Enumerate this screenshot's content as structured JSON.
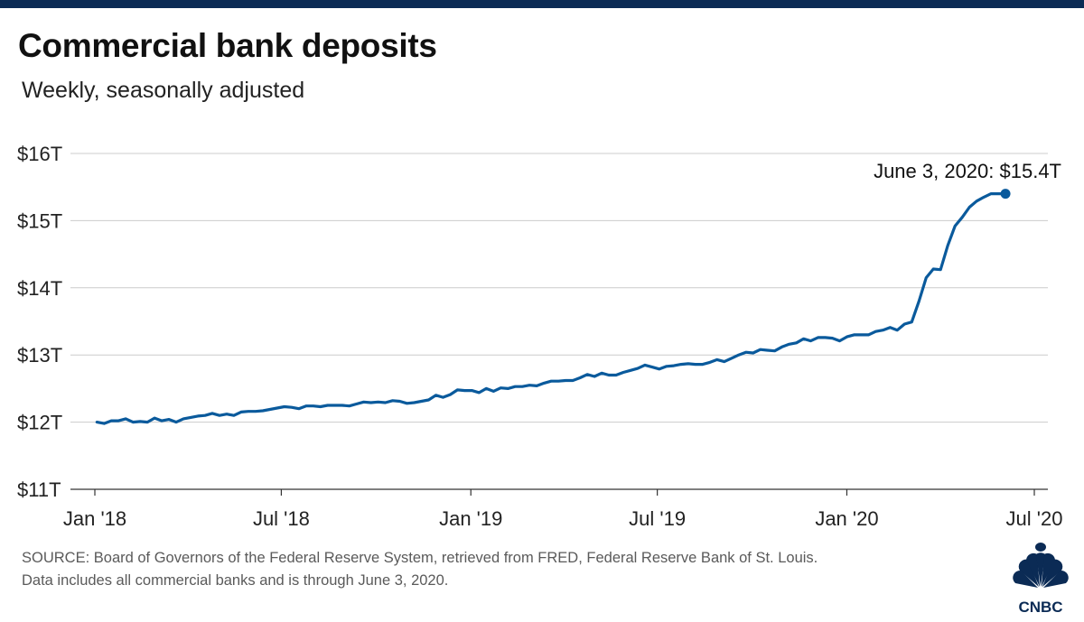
{
  "title": "Commercial bank deposits",
  "subtitle": "Weekly, seasonally adjusted",
  "source_line1": "SOURCE: Board of Governors of the Federal Reserve System, retrieved from FRED, Federal Reserve Bank of St. Louis.",
  "source_line2": "Data includes all commercial banks and is through June 3, 2020.",
  "logo_text": "CNBC",
  "colors": {
    "top_bar": "#0b2b55",
    "line": "#0a5a9c",
    "grid": "#cccccc",
    "axis": "#333333"
  },
  "chart_data": {
    "type": "line",
    "title": "Commercial bank deposits",
    "subtitle": "Weekly, seasonally adjusted",
    "xlabel": "",
    "ylabel": "",
    "x_range": [
      "2018-01-01",
      "2020-07-01"
    ],
    "ylim": [
      11,
      16
    ],
    "grid": true,
    "y_ticks": [
      {
        "value": 11,
        "label": "$11T"
      },
      {
        "value": 12,
        "label": "$12T"
      },
      {
        "value": 13,
        "label": "$13T"
      },
      {
        "value": 14,
        "label": "$14T"
      },
      {
        "value": 15,
        "label": "$15T"
      },
      {
        "value": 16,
        "label": "$16T"
      }
    ],
    "x_ticks": [
      {
        "date": "2018-01-01",
        "label": "Jan '18"
      },
      {
        "date": "2018-07-01",
        "label": "Jul '18"
      },
      {
        "date": "2019-01-01",
        "label": "Jan '19"
      },
      {
        "date": "2019-07-01",
        "label": "Jul '19"
      },
      {
        "date": "2020-01-01",
        "label": "Jan '20"
      },
      {
        "date": "2020-07-01",
        "label": "Jul '20"
      }
    ],
    "annotation": {
      "date": "2020-06-03",
      "value": 15.4,
      "text": "June 3, 2020: $15.4T"
    },
    "series": [
      {
        "x": [
          "2018-01-03",
          "2018-01-10",
          "2018-01-17",
          "2018-01-24",
          "2018-01-31",
          "2018-02-07",
          "2018-02-14",
          "2018-02-21",
          "2018-02-28",
          "2018-03-07",
          "2018-03-14",
          "2018-03-21",
          "2018-03-28",
          "2018-04-04",
          "2018-04-11",
          "2018-04-18",
          "2018-04-25",
          "2018-05-02",
          "2018-05-09",
          "2018-05-16",
          "2018-05-23",
          "2018-05-30",
          "2018-06-06",
          "2018-06-13",
          "2018-06-20",
          "2018-06-27",
          "2018-07-04",
          "2018-07-11",
          "2018-07-18",
          "2018-07-25",
          "2018-08-01",
          "2018-08-08",
          "2018-08-15",
          "2018-08-22",
          "2018-08-29",
          "2018-09-05",
          "2018-09-12",
          "2018-09-19",
          "2018-09-26",
          "2018-10-03",
          "2018-10-10",
          "2018-10-17",
          "2018-10-24",
          "2018-10-31",
          "2018-11-07",
          "2018-11-14",
          "2018-11-21",
          "2018-11-28",
          "2018-12-05",
          "2018-12-12",
          "2018-12-19",
          "2018-12-26",
          "2019-01-02",
          "2019-01-09",
          "2019-01-16",
          "2019-01-23",
          "2019-01-30",
          "2019-02-06",
          "2019-02-13",
          "2019-02-20",
          "2019-02-27",
          "2019-03-06",
          "2019-03-13",
          "2019-03-20",
          "2019-03-27",
          "2019-04-03",
          "2019-04-10",
          "2019-04-17",
          "2019-04-24",
          "2019-05-01",
          "2019-05-08",
          "2019-05-15",
          "2019-05-22",
          "2019-05-29",
          "2019-06-05",
          "2019-06-12",
          "2019-06-19",
          "2019-06-26",
          "2019-07-03",
          "2019-07-10",
          "2019-07-17",
          "2019-07-24",
          "2019-07-31",
          "2019-08-07",
          "2019-08-14",
          "2019-08-21",
          "2019-08-28",
          "2019-09-04",
          "2019-09-11",
          "2019-09-18",
          "2019-09-25",
          "2019-10-02",
          "2019-10-09",
          "2019-10-16",
          "2019-10-23",
          "2019-10-30",
          "2019-11-06",
          "2019-11-13",
          "2019-11-20",
          "2019-11-27",
          "2019-12-04",
          "2019-12-11",
          "2019-12-18",
          "2019-12-25",
          "2020-01-01",
          "2020-01-08",
          "2020-01-15",
          "2020-01-22",
          "2020-01-29",
          "2020-02-05",
          "2020-02-12",
          "2020-02-19",
          "2020-02-26",
          "2020-03-04",
          "2020-03-11",
          "2020-03-18",
          "2020-03-25",
          "2020-04-01",
          "2020-04-08",
          "2020-04-15",
          "2020-04-22",
          "2020-04-29",
          "2020-05-06",
          "2020-05-13",
          "2020-05-20",
          "2020-05-27",
          "2020-06-03"
        ],
        "y": [
          12.0,
          11.98,
          12.02,
          12.02,
          12.05,
          12.0,
          12.01,
          12.0,
          12.06,
          12.02,
          12.04,
          12.0,
          12.05,
          12.07,
          12.09,
          12.1,
          12.13,
          12.1,
          12.12,
          12.1,
          12.15,
          12.16,
          12.16,
          12.17,
          12.19,
          12.21,
          12.23,
          12.22,
          12.2,
          12.24,
          12.24,
          12.23,
          12.25,
          12.25,
          12.25,
          12.24,
          12.27,
          12.3,
          12.29,
          12.3,
          12.29,
          12.32,
          12.31,
          12.28,
          12.29,
          12.31,
          12.33,
          12.4,
          12.37,
          12.41,
          12.48,
          12.47,
          12.47,
          12.44,
          12.5,
          12.46,
          12.51,
          12.5,
          12.53,
          12.53,
          12.55,
          12.54,
          12.58,
          12.61,
          12.61,
          12.62,
          12.62,
          12.66,
          12.71,
          12.68,
          12.73,
          12.7,
          12.7,
          12.74,
          12.77,
          12.8,
          12.85,
          12.82,
          12.79,
          12.83,
          12.84,
          12.86,
          12.87,
          12.86,
          12.86,
          12.89,
          12.93,
          12.9,
          12.95,
          13.0,
          13.04,
          13.03,
          13.08,
          13.07,
          13.06,
          13.12,
          13.16,
          13.18,
          13.24,
          13.21,
          13.26,
          13.26,
          13.25,
          13.21,
          13.27,
          13.3,
          13.3,
          13.3,
          13.35,
          13.37,
          13.41,
          13.37,
          13.46,
          13.49,
          13.8,
          14.15,
          14.28,
          14.27,
          14.63,
          14.92,
          15.05,
          15.2,
          15.29,
          15.35,
          15.4,
          15.4,
          15.4
        ]
      }
    ]
  }
}
